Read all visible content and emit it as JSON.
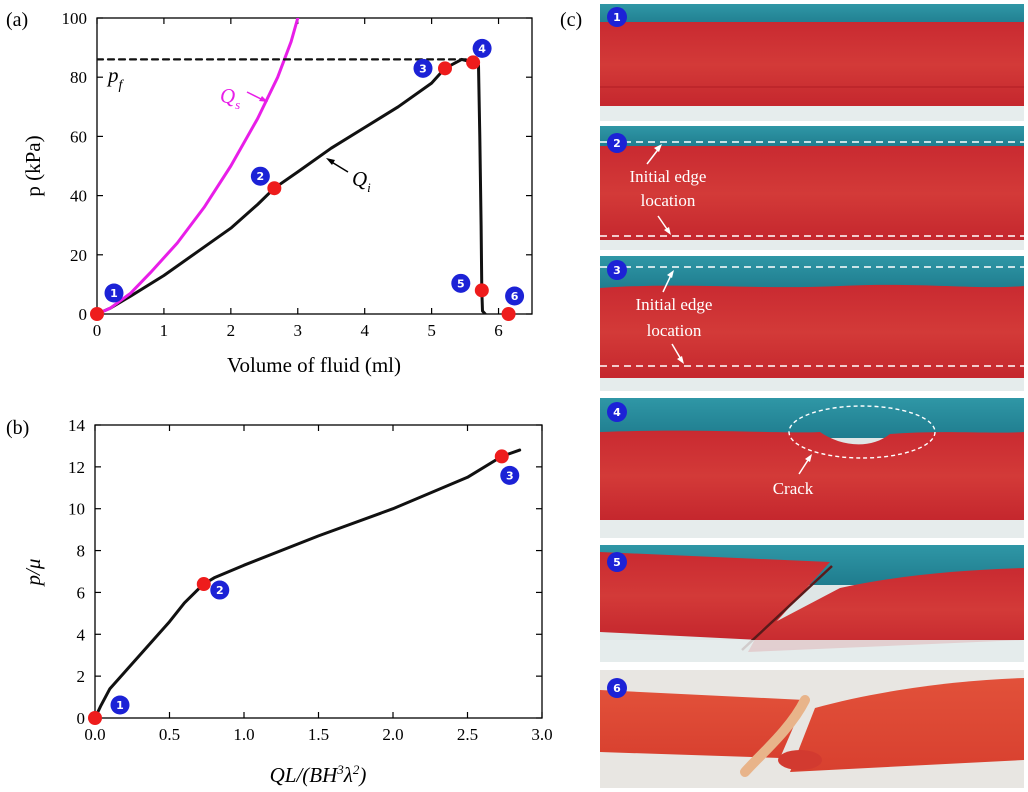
{
  "panels": {
    "a_label": "(a)",
    "b_label": "(b)",
    "c_label": "(c)"
  },
  "colors": {
    "curve_main": "#111111",
    "curve_Qs": "#e81ee8",
    "marker": "#ee1c1c",
    "badge": "#1c22d6",
    "photo_fluid_top": "#2a8fa0",
    "photo_gel": "#c8282e",
    "photo_base": "#e4ecec"
  },
  "chart_data": [
    {
      "panel": "a",
      "type": "line",
      "xlabel": "Volume of fluid (ml)",
      "ylabel": "p (kPa)",
      "xlim": [
        0,
        6.5
      ],
      "ylim": [
        0,
        100
      ],
      "xticks": [
        "0",
        "1",
        "2",
        "3",
        "4",
        "5",
        "6"
      ],
      "yticks": [
        "0",
        "20",
        "40",
        "60",
        "80",
        "100"
      ],
      "grid": false,
      "series": [
        {
          "name": "Qi",
          "color": "#111111",
          "x": [
            0,
            0.2,
            0.5,
            1.0,
            1.5,
            2.0,
            2.4,
            2.65,
            3.0,
            3.5,
            4.0,
            4.5,
            5.0,
            5.2,
            5.45,
            5.62,
            5.7,
            5.72,
            5.74,
            5.75,
            5.76,
            5.8
          ],
          "y": [
            0,
            2,
            6,
            13,
            21,
            29,
            37,
            42.5,
            48,
            56,
            63,
            70,
            78,
            83,
            86,
            85,
            84,
            60,
            30,
            8,
            1,
            0
          ]
        },
        {
          "name": "Qs",
          "color": "#e81ee8",
          "x": [
            0,
            0.2,
            0.5,
            0.8,
            1.2,
            1.6,
            2.0,
            2.4,
            2.7,
            2.9,
            3.0
          ],
          "y": [
            0,
            2,
            7,
            14,
            24,
            36,
            50,
            66,
            80,
            92,
            100
          ]
        },
        {
          "name": "pf",
          "color": "#111111",
          "dashed": true,
          "x": [
            0,
            5.55
          ],
          "y": [
            86,
            86
          ]
        }
      ],
      "points": [
        {
          "x": 0,
          "y": 0,
          "label": "1"
        },
        {
          "x": 2.65,
          "y": 42.5,
          "label": "2"
        },
        {
          "x": 5.2,
          "y": 83,
          "label": "3"
        },
        {
          "x": 5.62,
          "y": 85,
          "label": "4"
        },
        {
          "x": 5.75,
          "y": 8,
          "label": "5"
        },
        {
          "x": 6.15,
          "y": 0,
          "label": "6"
        }
      ],
      "annotations": [
        "Q",
        "s",
        "Q",
        "i",
        "p",
        "f"
      ]
    },
    {
      "panel": "b",
      "type": "line",
      "xlabel": "QL/(BH3λ2)",
      "ylabel": "p/μ",
      "xlim": [
        0,
        3.0
      ],
      "ylim": [
        0,
        14
      ],
      "xticks": [
        "0.0",
        "0.5",
        "1.0",
        "1.5",
        "2.0",
        "2.5",
        "3.0"
      ],
      "yticks": [
        "0",
        "2",
        "4",
        "6",
        "8",
        "10",
        "12",
        "14"
      ],
      "grid": false,
      "series": [
        {
          "name": "",
          "color": "#111111",
          "x": [
            0,
            0.04,
            0.1,
            0.2,
            0.3,
            0.4,
            0.5,
            0.6,
            0.7,
            0.73,
            0.8,
            0.9,
            1.0,
            1.5,
            2.0,
            2.5,
            2.73,
            2.85
          ],
          "y": [
            0,
            0.6,
            1.4,
            2.2,
            3.0,
            3.8,
            4.6,
            5.5,
            6.2,
            6.4,
            6.7,
            7.0,
            7.3,
            8.7,
            10.0,
            11.5,
            12.5,
            12.8
          ]
        }
      ],
      "points": [
        {
          "x": 0,
          "y": 0,
          "label": "1"
        },
        {
          "x": 0.73,
          "y": 6.4,
          "label": "2"
        },
        {
          "x": 2.73,
          "y": 12.5,
          "label": "3"
        }
      ]
    }
  ],
  "photos": [
    {
      "badge": "1"
    },
    {
      "badge": "2",
      "text_line1": "Initial edge",
      "text_line2": "location"
    },
    {
      "badge": "3",
      "text_line1": "Initial edge",
      "text_line2": "location"
    },
    {
      "badge": "4",
      "text_line1": "Crack"
    },
    {
      "badge": "5"
    },
    {
      "badge": "6"
    }
  ]
}
